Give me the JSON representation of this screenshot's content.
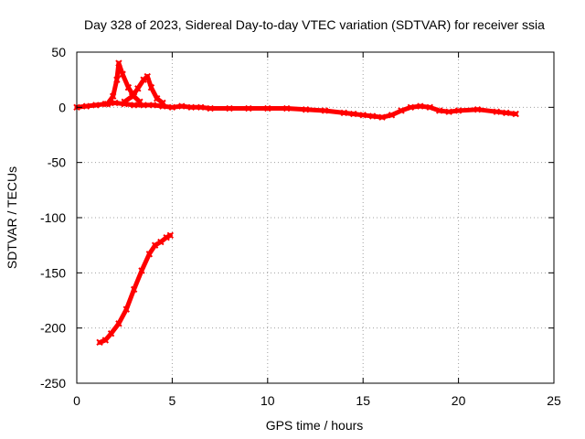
{
  "chart_data": {
    "type": "scatter",
    "title": "Day 328 of 2023, Sidereal Day-to-day VTEC variation (SDTVAR) for receiver ssia",
    "xlabel": "GPS time / hours",
    "ylabel": "SDTVAR / TECUs",
    "xlim": [
      0,
      25
    ],
    "ylim": [
      -250,
      50
    ],
    "xticks": [
      0,
      5,
      10,
      15,
      20,
      25
    ],
    "yticks": [
      -250,
      -200,
      -150,
      -100,
      -50,
      0,
      50
    ],
    "grid": true,
    "legend": "none",
    "series": [
      {
        "name": "main trace",
        "color": "#ff0000",
        "points": [
          [
            0,
            0
          ],
          [
            0.5,
            1
          ],
          [
            1,
            2
          ],
          [
            1.5,
            3
          ],
          [
            2,
            4
          ],
          [
            2.5,
            3
          ],
          [
            3,
            2
          ],
          [
            3.5,
            2
          ],
          [
            4,
            2
          ],
          [
            4.5,
            1
          ],
          [
            5,
            0
          ],
          [
            5.5,
            1
          ],
          [
            6,
            0
          ],
          [
            6.5,
            0
          ],
          [
            7,
            -1
          ],
          [
            8,
            -1
          ],
          [
            9,
            -1
          ],
          [
            10,
            -1
          ],
          [
            11,
            -1
          ],
          [
            12,
            -2
          ],
          [
            13,
            -3
          ],
          [
            14,
            -5
          ],
          [
            14.5,
            -6
          ],
          [
            15,
            -7
          ],
          [
            15.5,
            -8
          ],
          [
            16,
            -9
          ],
          [
            16.5,
            -7
          ],
          [
            17,
            -3
          ],
          [
            17.5,
            0
          ],
          [
            18,
            1
          ],
          [
            18.5,
            0
          ],
          [
            19,
            -3
          ],
          [
            19.5,
            -4
          ],
          [
            20,
            -3
          ],
          [
            21,
            -2
          ],
          [
            22,
            -4
          ],
          [
            22.5,
            -5
          ],
          [
            23,
            -6
          ]
        ]
      },
      {
        "name": "spike near 2.2h",
        "color": "#ff0000",
        "points": [
          [
            1.6,
            3
          ],
          [
            1.9,
            10
          ],
          [
            2.1,
            25
          ],
          [
            2.2,
            40
          ],
          [
            2.4,
            30
          ],
          [
            2.7,
            18
          ],
          [
            3.0,
            10
          ],
          [
            3.3,
            5
          ]
        ]
      },
      {
        "name": "spike near 3.6h",
        "color": "#ff0000",
        "points": [
          [
            2.5,
            5
          ],
          [
            2.9,
            10
          ],
          [
            3.2,
            17
          ],
          [
            3.5,
            25
          ],
          [
            3.7,
            28
          ],
          [
            3.9,
            18
          ],
          [
            4.2,
            8
          ],
          [
            4.5,
            4
          ]
        ]
      },
      {
        "name": "lower arc",
        "color": "#ff0000",
        "points": [
          [
            1.2,
            -213
          ],
          [
            1.5,
            -211
          ],
          [
            1.8,
            -205
          ],
          [
            2.2,
            -196
          ],
          [
            2.6,
            -183
          ],
          [
            3.0,
            -165
          ],
          [
            3.4,
            -148
          ],
          [
            3.8,
            -133
          ],
          [
            4.1,
            -125
          ],
          [
            4.4,
            -122
          ],
          [
            4.7,
            -118
          ],
          [
            4.9,
            -116
          ]
        ]
      }
    ]
  }
}
